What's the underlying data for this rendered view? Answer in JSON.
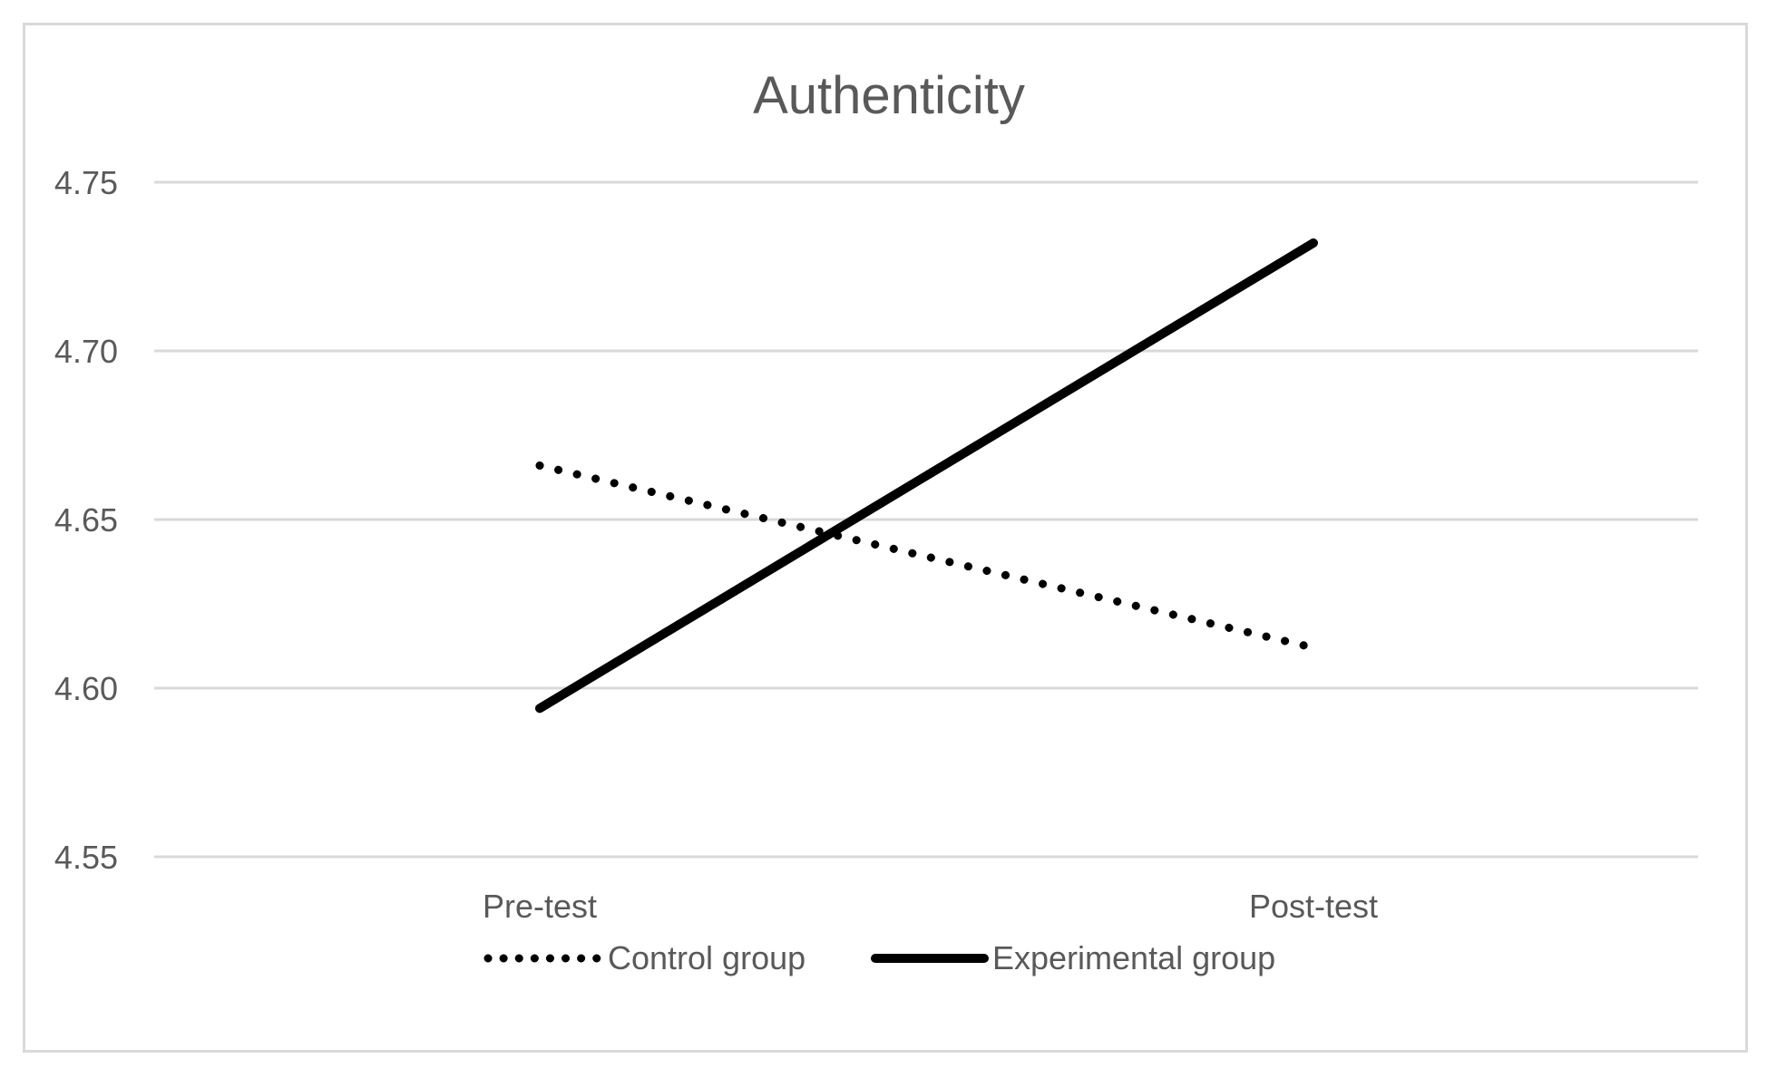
{
  "chart_data": {
    "type": "line",
    "title": "Authenticity",
    "xlabel": "",
    "ylabel": "",
    "categories": [
      "Pre-test",
      "Post-test"
    ],
    "ylim": [
      4.55,
      4.75
    ],
    "yticks": [
      "4.55",
      "4.60",
      "4.65",
      "4.70",
      "4.75"
    ],
    "yticks_values": [
      4.55,
      4.6,
      4.65,
      4.7,
      4.75
    ],
    "grid": true,
    "legend_position": "bottom",
    "series": [
      {
        "name": "Control group",
        "values": [
          4.666,
          4.612
        ],
        "style": "dotted",
        "color": "#000000"
      },
      {
        "name": "Experimental group",
        "values": [
          4.594,
          4.732
        ],
        "style": "solid",
        "color": "#000000"
      }
    ],
    "colors": {
      "gridline": "#d9d9d9",
      "text": "#595959",
      "frame": "#d9d9d9"
    }
  }
}
